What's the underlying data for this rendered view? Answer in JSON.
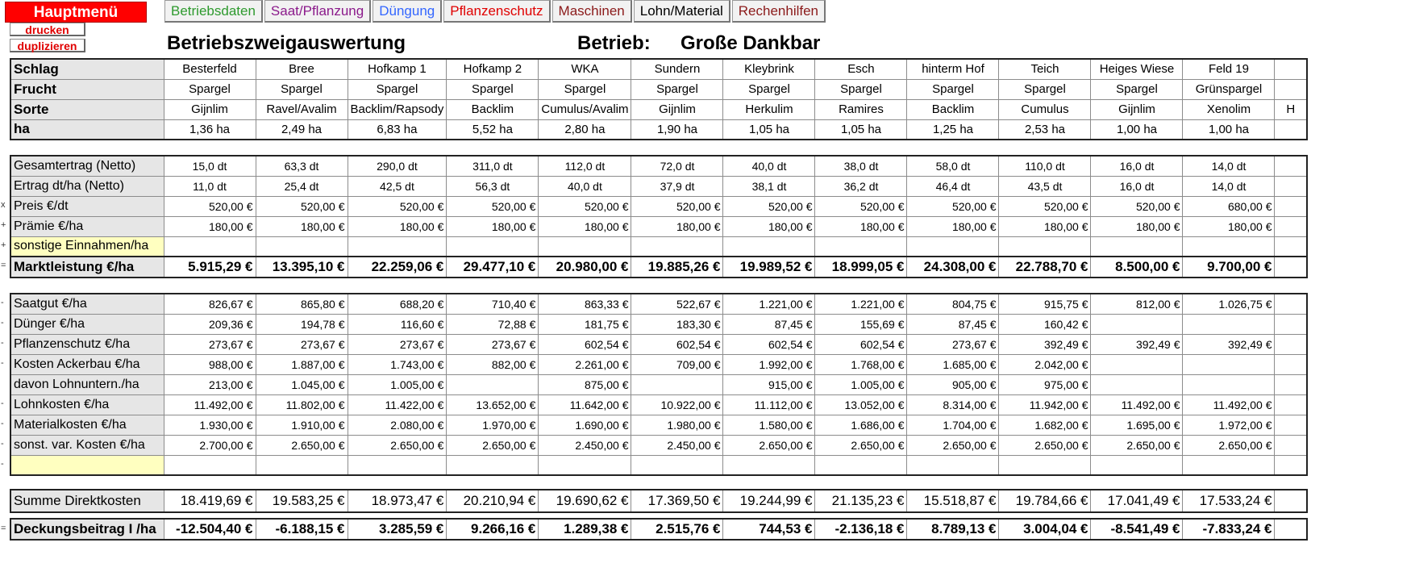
{
  "nav": {
    "main_menu": "Hauptmenü",
    "print": "drucken",
    "duplicate": "duplizieren",
    "tabs": [
      {
        "label": "Betriebsdaten",
        "color": "#2e9a2e"
      },
      {
        "label": "Saat/Pflanzung",
        "color": "#8b1a8b"
      },
      {
        "label": "Düngung",
        "color": "#3366ff"
      },
      {
        "label": "Pflanzenschutz",
        "color": "#e00000"
      },
      {
        "label": "Maschinen",
        "color": "#8b1a1a"
      },
      {
        "label": "Lohn/Material",
        "color": "#000000"
      },
      {
        "label": "Rechenhilfen",
        "color": "#8b1a1a"
      }
    ]
  },
  "header": {
    "title": "Betriebszweigauswertung",
    "farm_label": "Betrieb:",
    "farm_name": "Große Dankbar"
  },
  "fields": {
    "labels": {
      "schlag": "Schlag",
      "frucht": "Frucht",
      "sorte": "Sorte",
      "ha": "ha"
    },
    "schlag": [
      "Besterfeld",
      "Bree",
      "Hofkamp 1",
      "Hofkamp 2",
      "WKA",
      "Sundern",
      "Kleybrink",
      "Esch",
      "hinterm Hof",
      "Teich",
      "Heiges Wiese",
      "Feld 19"
    ],
    "frucht": [
      "Spargel",
      "Spargel",
      "Spargel",
      "Spargel",
      "Spargel",
      "Spargel",
      "Spargel",
      "Spargel",
      "Spargel",
      "Spargel",
      "Spargel",
      "Grünspargel"
    ],
    "sorte": [
      "Gijnlim",
      "Ravel/Avalim",
      "Backlim/Rapsody",
      "Backlim",
      "Cumulus/Avalim",
      "Gijnlim",
      "Herkulim",
      "Ramires",
      "Backlim",
      "Cumulus",
      "Gijnlim",
      "Xenolim"
    ],
    "ha": [
      "1,36 ha",
      "2,49 ha",
      "6,83 ha",
      "5,52 ha",
      "2,80 ha",
      "1,90 ha",
      "1,05 ha",
      "1,05 ha",
      "1,25 ha",
      "2,53 ha",
      "1,00 ha",
      "1,00 ha"
    ],
    "overflow_fragment": "H"
  },
  "revenue": [
    {
      "label": "Gesamtertrag (Netto)",
      "mark": "",
      "style": "ctr",
      "values": [
        "15,0 dt",
        "63,3 dt",
        "290,0 dt",
        "311,0 dt",
        "112,0 dt",
        "72,0 dt",
        "40,0 dt",
        "38,0 dt",
        "58,0 dt",
        "110,0 dt",
        "16,0 dt",
        "14,0 dt"
      ]
    },
    {
      "label": "Ertrag dt/ha (Netto)",
      "mark": "",
      "style": "ctr",
      "values": [
        "11,0 dt",
        "25,4 dt",
        "42,5 dt",
        "56,3 dt",
        "40,0 dt",
        "37,9 dt",
        "38,1 dt",
        "36,2 dt",
        "46,4 dt",
        "43,5 dt",
        "16,0 dt",
        "14,0 dt"
      ]
    },
    {
      "label": "Preis €/dt",
      "mark": "x",
      "style": "num",
      "values": [
        "520,00 €",
        "520,00 €",
        "520,00 €",
        "520,00 €",
        "520,00 €",
        "520,00 €",
        "520,00 €",
        "520,00 €",
        "520,00 €",
        "520,00 €",
        "520,00 €",
        "680,00 €"
      ]
    },
    {
      "label": "Prämie €/ha",
      "mark": "+",
      "style": "num",
      "values": [
        "180,00 €",
        "180,00 €",
        "180,00 €",
        "180,00 €",
        "180,00 €",
        "180,00 €",
        "180,00 €",
        "180,00 €",
        "180,00 €",
        "180,00 €",
        "180,00 €",
        "180,00 €"
      ]
    },
    {
      "label": "sonstige Einnahmen/ha",
      "mark": "+",
      "style": "num",
      "yellow": true,
      "values": [
        "",
        "",
        "",
        "",
        "",
        "",
        "",
        "",
        "",
        "",
        "",
        ""
      ]
    }
  ],
  "marktleistung": {
    "label": "Marktleistung €/ha",
    "mark": "=",
    "values": [
      "5.915,29 €",
      "13.395,10 €",
      "22.259,06 €",
      "29.477,10 €",
      "20.980,00 €",
      "19.885,26 €",
      "19.989,52 €",
      "18.999,05 €",
      "24.308,00 €",
      "22.788,70 €",
      "8.500,00 €",
      "9.700,00 €"
    ]
  },
  "costs": [
    {
      "label": "Saatgut €/ha",
      "mark": "-",
      "values": [
        "826,67 €",
        "865,80 €",
        "688,20 €",
        "710,40 €",
        "863,33 €",
        "522,67 €",
        "1.221,00 €",
        "1.221,00 €",
        "804,75 €",
        "915,75 €",
        "812,00 €",
        "1.026,75 €"
      ]
    },
    {
      "label": "Dünger €/ha",
      "mark": "-",
      "values": [
        "209,36 €",
        "194,78 €",
        "116,60 €",
        "72,88 €",
        "181,75 €",
        "183,30 €",
        "87,45 €",
        "155,69 €",
        "87,45 €",
        "160,42 €",
        "",
        ""
      ]
    },
    {
      "label": "Pflanzenschutz €/ha",
      "mark": "-",
      "values": [
        "273,67 €",
        "273,67 €",
        "273,67 €",
        "273,67 €",
        "602,54 €",
        "602,54 €",
        "602,54 €",
        "602,54 €",
        "273,67 €",
        "392,49 €",
        "392,49 €",
        "392,49 €"
      ]
    },
    {
      "label": "Kosten Ackerbau €/ha",
      "mark": "-",
      "values": [
        "988,00 €",
        "1.887,00 €",
        "1.743,00 €",
        "882,00 €",
        "2.261,00 €",
        "709,00 €",
        "1.992,00 €",
        "1.768,00 €",
        "1.685,00 €",
        "2.042,00 €",
        "",
        ""
      ]
    },
    {
      "label": "davon Lohnuntern./ha",
      "mark": "",
      "values": [
        "213,00 €",
        "1.045,00 €",
        "1.005,00 €",
        "",
        "875,00 €",
        "",
        "915,00 €",
        "1.005,00 €",
        "905,00 €",
        "975,00 €",
        "",
        ""
      ]
    },
    {
      "label": "Lohnkosten €/ha",
      "mark": "-",
      "values": [
        "11.492,00 €",
        "11.802,00 €",
        "11.422,00 €",
        "13.652,00 €",
        "11.642,00 €",
        "10.922,00 €",
        "11.112,00 €",
        "13.052,00 €",
        "8.314,00 €",
        "11.942,00 €",
        "11.492,00 €",
        "11.492,00 €"
      ]
    },
    {
      "label": "Materialkosten €/ha",
      "mark": "-",
      "values": [
        "1.930,00 €",
        "1.910,00 €",
        "2.080,00 €",
        "1.970,00 €",
        "1.690,00 €",
        "1.980,00 €",
        "1.580,00 €",
        "1.686,00 €",
        "1.704,00 €",
        "1.682,00 €",
        "1.695,00 €",
        "1.972,00 €"
      ]
    },
    {
      "label": "sonst. var. Kosten €/ha",
      "mark": "-",
      "values": [
        "2.700,00 €",
        "2.650,00 €",
        "2.650,00 €",
        "2.650,00 €",
        "2.450,00 €",
        "2.450,00 €",
        "2.650,00 €",
        "2.650,00 €",
        "2.650,00 €",
        "2.650,00 €",
        "2.650,00 €",
        "2.650,00 €"
      ]
    },
    {
      "label": "",
      "mark": "-",
      "yellow": true,
      "values": [
        "",
        "",
        "",
        "",
        "",
        "",
        "",
        "",
        "",
        "",
        "",
        ""
      ]
    }
  ],
  "summe": {
    "label": "Summe Direktkosten",
    "mark": "",
    "values": [
      "18.419,69 €",
      "19.583,25 €",
      "18.973,47 €",
      "20.210,94 €",
      "19.690,62 €",
      "17.369,50 €",
      "19.244,99 €",
      "21.135,23 €",
      "15.518,87 €",
      "19.784,66 €",
      "17.041,49 €",
      "17.533,24 €"
    ]
  },
  "deckung": {
    "label": "Deckungsbeitrag I /ha",
    "mark": "=",
    "values": [
      "-12.504,40 €",
      "-6.188,15 €",
      "3.285,59 €",
      "9.266,16 €",
      "1.289,38 €",
      "2.515,76 €",
      "744,53 €",
      "-2.136,18 €",
      "8.789,13 €",
      "3.004,04 €",
      "-8.541,49 €",
      "-7.833,24 €"
    ]
  }
}
